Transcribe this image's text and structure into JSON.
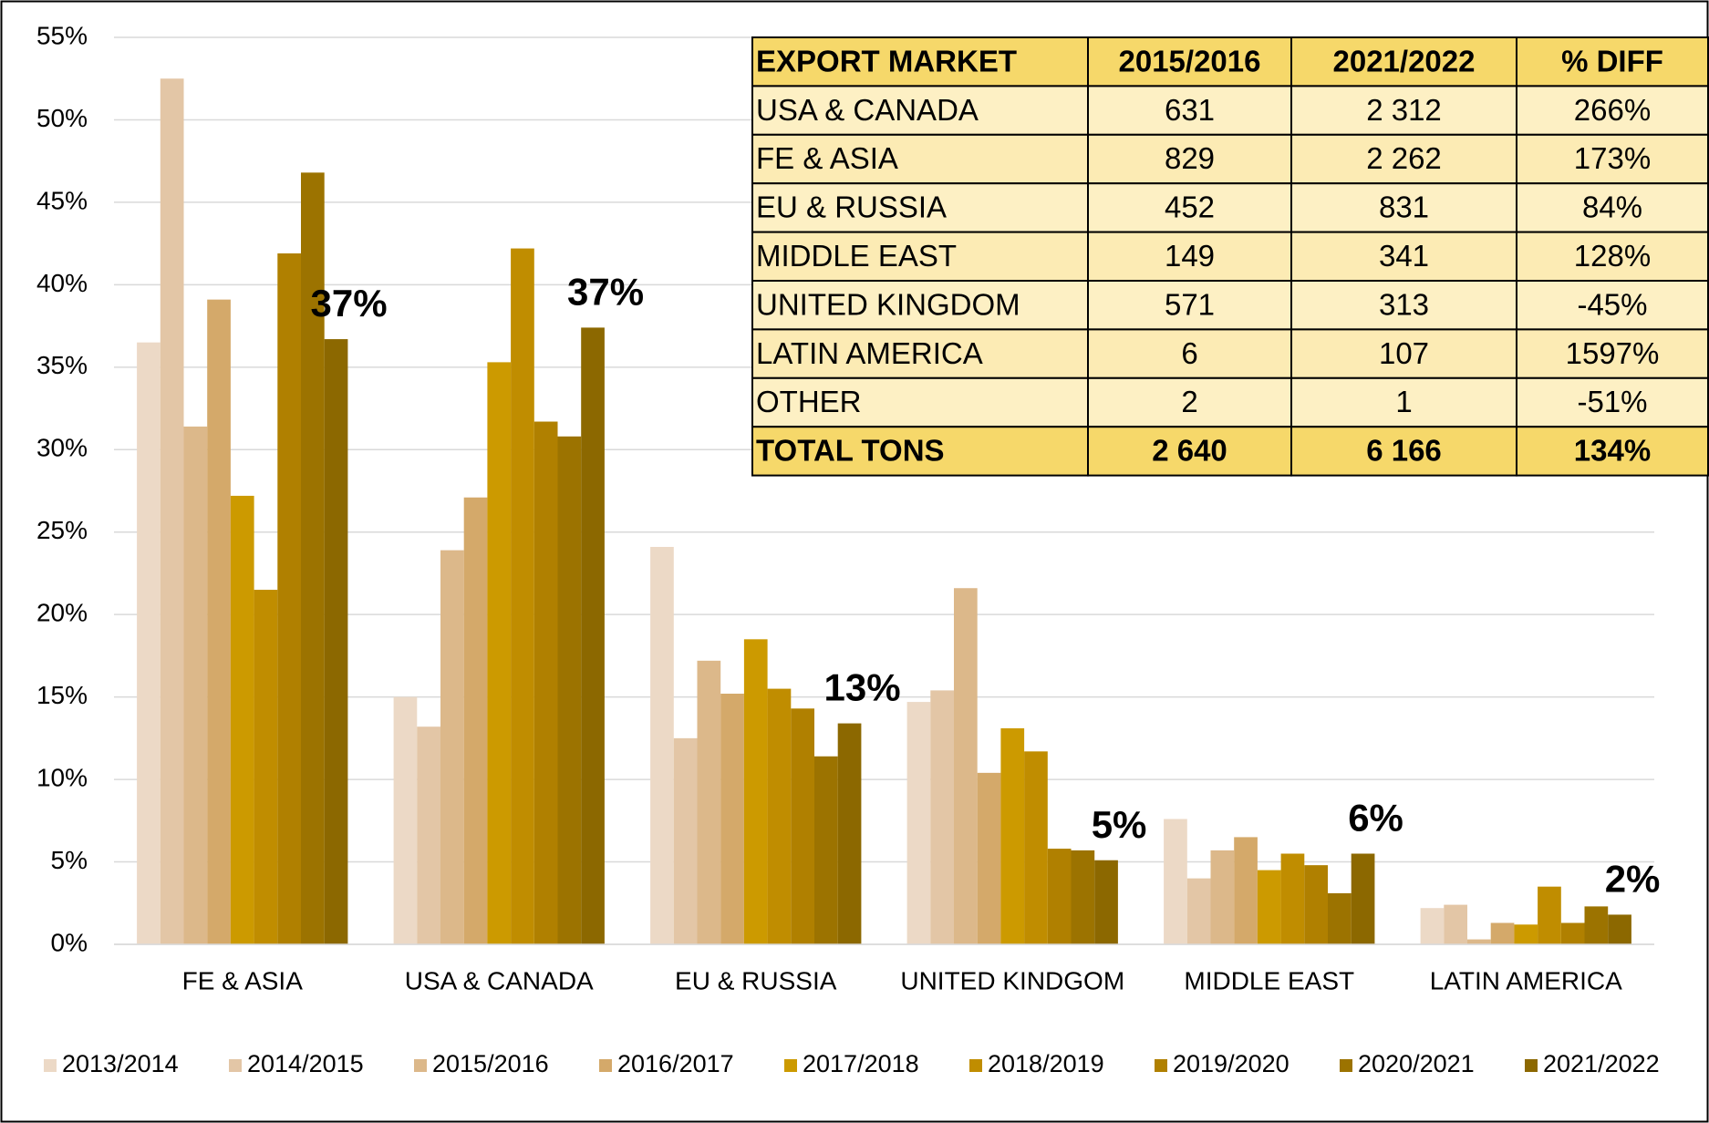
{
  "chart_data": {
    "type": "bar",
    "categories": [
      "FE & ASIA",
      "USA & CANADA",
      "EU & RUSSIA",
      "UNITED KINDGOM",
      "MIDDLE EAST",
      "LATIN AMERICA"
    ],
    "series": [
      {
        "name": "2013/2014",
        "color": "#ecd9c6",
        "values": [
          36.5,
          15.0,
          24.1,
          14.7,
          7.6,
          2.2
        ]
      },
      {
        "name": "2014/2015",
        "color": "#e3c6a6",
        "values": [
          52.5,
          13.2,
          12.5,
          15.4,
          4.0,
          2.4
        ]
      },
      {
        "name": "2015/2016",
        "color": "#dcb88a",
        "values": [
          31.4,
          23.9,
          17.2,
          21.6,
          5.7,
          0.3
        ]
      },
      {
        "name": "2016/2017",
        "color": "#d4a96a",
        "values": [
          39.1,
          27.1,
          15.2,
          10.4,
          6.5,
          1.3
        ]
      },
      {
        "name": "2017/2018",
        "color": "#cc9a00",
        "values": [
          27.2,
          35.3,
          18.5,
          13.1,
          4.5,
          1.2
        ]
      },
      {
        "name": "2018/2019",
        "color": "#c08d00",
        "values": [
          21.5,
          42.2,
          15.5,
          11.7,
          5.5,
          3.5
        ]
      },
      {
        "name": "2019/2020",
        "color": "#b08000",
        "values": [
          41.9,
          31.7,
          14.3,
          5.8,
          4.8,
          1.3
        ]
      },
      {
        "name": "2020/2021",
        "color": "#9c7300",
        "values": [
          46.8,
          30.8,
          11.4,
          5.7,
          3.1,
          2.3
        ]
      },
      {
        "name": "2021/2022",
        "color": "#8c6800",
        "values": [
          36.7,
          37.4,
          13.4,
          5.1,
          5.5,
          1.8
        ],
        "value_labels": [
          "37%",
          "37%",
          "13%",
          "5%",
          "6%",
          "2%"
        ]
      }
    ],
    "ylim": [
      0,
      55
    ],
    "yticks": [
      {
        "value": 0,
        "label": "0%"
      },
      {
        "value": 5,
        "label": "5%"
      },
      {
        "value": 10,
        "label": "10%"
      },
      {
        "value": 15,
        "label": "15%"
      },
      {
        "value": 20,
        "label": "20%"
      },
      {
        "value": 25,
        "label": "25%"
      },
      {
        "value": 30,
        "label": "30%"
      },
      {
        "value": 35,
        "label": "35%"
      },
      {
        "value": 40,
        "label": "40%"
      },
      {
        "value": 45,
        "label": "45%"
      },
      {
        "value": 50,
        "label": "50%"
      },
      {
        "value": 55,
        "label": "55%"
      }
    ],
    "grid": true,
    "legend": "bottom"
  },
  "table": {
    "columns": [
      "EXPORT MARKET",
      "2015/2016",
      "2021/2022",
      "% DIFF"
    ],
    "rows": [
      [
        "USA & CANADA",
        "631",
        "2 312",
        "266%"
      ],
      [
        "FE & ASIA",
        "829",
        "2 262",
        "173%"
      ],
      [
        "EU & RUSSIA",
        "452",
        "831",
        "84%"
      ],
      [
        "MIDDLE EAST",
        "149",
        "341",
        "128%"
      ],
      [
        "UNITED KINGDOM",
        "571",
        "313",
        "-45%"
      ],
      [
        "LATIN AMERICA",
        "6",
        "107",
        "1597%"
      ],
      [
        "OTHER",
        "2",
        "1",
        "-51%"
      ]
    ],
    "total": [
      "TOTAL TONS",
      "2 640",
      "6 166",
      "134%"
    ]
  }
}
